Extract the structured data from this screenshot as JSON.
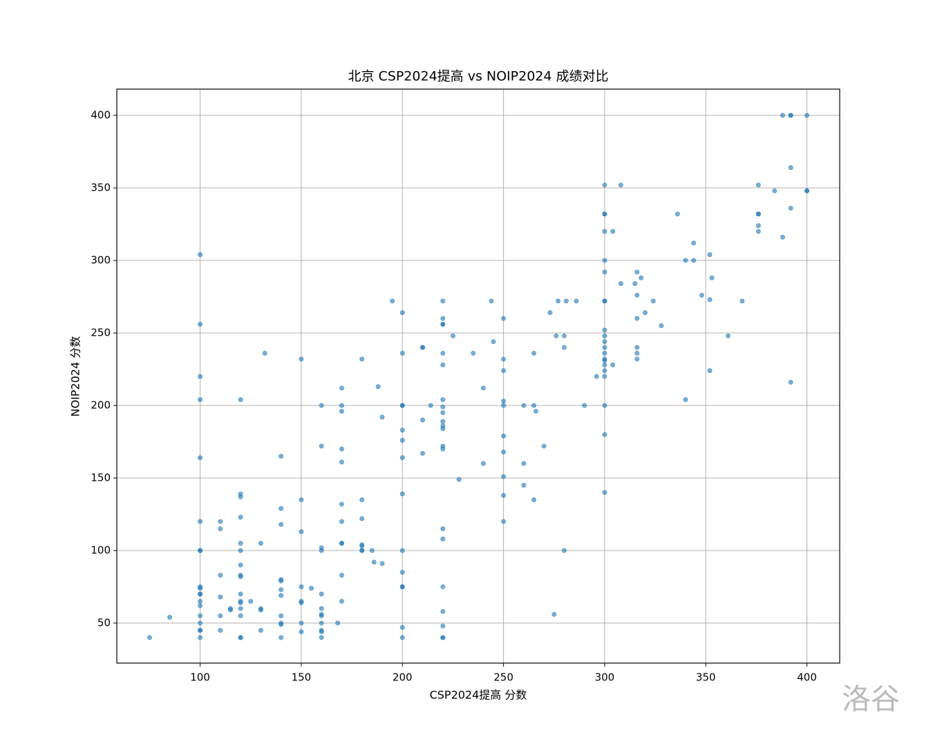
{
  "chart_data": {
    "type": "scatter",
    "title": "北京 CSP2024提高 vs NOIP2024 成绩对比",
    "x_label": "CSP2024提高 分数",
    "y_label": "NOIP2024 分数",
    "watermark": "洛谷",
    "xlim": [
      58.8,
      416.2
    ],
    "ylim": [
      22.4,
      418.1
    ],
    "xticks": [
      100,
      150,
      200,
      250,
      300,
      350,
      400
    ],
    "yticks": [
      50,
      100,
      150,
      200,
      250,
      300,
      350,
      400
    ],
    "grid": true,
    "x": [
      75,
      85,
      100,
      100,
      100,
      100,
      100,
      100,
      100,
      100,
      100,
      100,
      100,
      100,
      100,
      100,
      100,
      100,
      100,
      100,
      100,
      110,
      110,
      110,
      110,
      110,
      110,
      115,
      115,
      120,
      120,
      120,
      120,
      120,
      120,
      120,
      120,
      120,
      120,
      120,
      120,
      120,
      120,
      120,
      120,
      125,
      130,
      130,
      130,
      130,
      132,
      140,
      140,
      140,
      140,
      140,
      140,
      140,
      140,
      140,
      140,
      140,
      150,
      150,
      150,
      150,
      150,
      150,
      150,
      150,
      155,
      160,
      160,
      160,
      160,
      160,
      160,
      160,
      160,
      160,
      160,
      160,
      160,
      168,
      170,
      170,
      170,
      170,
      170,
      170,
      170,
      170,
      170,
      170,
      170,
      180,
      180,
      180,
      180,
      180,
      180,
      180,
      185,
      186,
      188,
      190,
      190,
      195,
      200,
      200,
      200,
      200,
      200,
      200,
      200,
      200,
      200,
      200,
      200,
      200,
      200,
      200,
      210,
      210,
      210,
      210,
      214,
      220,
      220,
      220,
      220,
      220,
      220,
      220,
      220,
      220,
      220,
      220,
      220,
      220,
      220,
      220,
      220,
      220,
      220,
      220,
      220,
      220,
      225,
      228,
      235,
      240,
      240,
      244,
      245,
      250,
      250,
      250,
      250,
      250,
      250,
      250,
      250,
      250,
      250,
      260,
      260,
      260,
      265,
      265,
      265,
      266,
      270,
      273,
      275,
      276,
      277,
      280,
      280,
      280,
      281,
      286,
      290,
      296,
      300,
      300,
      300,
      300,
      300,
      300,
      300,
      300,
      300,
      300,
      300,
      300,
      300,
      300,
      300,
      300,
      300,
      300,
      300,
      300,
      300,
      304,
      304,
      308,
      308,
      315,
      316,
      316,
      316,
      316,
      316,
      316,
      318,
      320,
      324,
      328,
      336,
      340,
      340,
      344,
      344,
      348,
      352,
      352,
      352,
      353,
      361,
      368,
      376,
      376,
      376,
      376,
      376,
      384,
      388,
      388,
      392,
      392,
      392,
      392,
      392,
      400,
      400,
      400
    ],
    "series": [
      {
        "color": "#1f77b4",
        "values": [
          40,
          54,
          304,
          256,
          220,
          204,
          164,
          120,
          100,
          100,
          75,
          74,
          70,
          70,
          65,
          62,
          55,
          50,
          45,
          45,
          40,
          120,
          115,
          83,
          68,
          55,
          45,
          60,
          59,
          204,
          139,
          137,
          123,
          105,
          100,
          90,
          83,
          82,
          70,
          65,
          64,
          60,
          55,
          40,
          40,
          65,
          105,
          60,
          59,
          45,
          236,
          165,
          129,
          118,
          80,
          79,
          73,
          69,
          55,
          50,
          49,
          40,
          232,
          135,
          113,
          75,
          65,
          64,
          50,
          44,
          74,
          200,
          172,
          102,
          100,
          70,
          60,
          56,
          55,
          50,
          45,
          44,
          40,
          50,
          212,
          200,
          196,
          170,
          161,
          132,
          120,
          105,
          105,
          83,
          65,
          232,
          135,
          122,
          104,
          103,
          100,
          100,
          100,
          92,
          213,
          192,
          91,
          272,
          264,
          236,
          200,
          200,
          183,
          176,
          164,
          139,
          100,
          85,
          75,
          75,
          47,
          40,
          240,
          240,
          190,
          167,
          200,
          272,
          260,
          256,
          256,
          236,
          228,
          204,
          199,
          195,
          189,
          186,
          184,
          172,
          170,
          115,
          108,
          75,
          58,
          48,
          40,
          40,
          248,
          149,
          236,
          212,
          160,
          272,
          244,
          260,
          232,
          224,
          203,
          200,
          179,
          168,
          151,
          138,
          120,
          200,
          160,
          145,
          236,
          200,
          135,
          196,
          172,
          264,
          56,
          248,
          272,
          248,
          240,
          100,
          272,
          272,
          200,
          220,
          352,
          332,
          332,
          320,
          300,
          292,
          272,
          272,
          252,
          248,
          244,
          240,
          236,
          232,
          231,
          228,
          224,
          220,
          200,
          180,
          140,
          320,
          228,
          352,
          284,
          284,
          292,
          276,
          260,
          240,
          236,
          232,
          288,
          264,
          272,
          255,
          332,
          300,
          204,
          312,
          300,
          276,
          304,
          273,
          224,
          288,
          248,
          272,
          352,
          332,
          332,
          324,
          320,
          348,
          400,
          316,
          400,
          400,
          364,
          336,
          216,
          400,
          348,
          348
        ]
      }
    ]
  }
}
